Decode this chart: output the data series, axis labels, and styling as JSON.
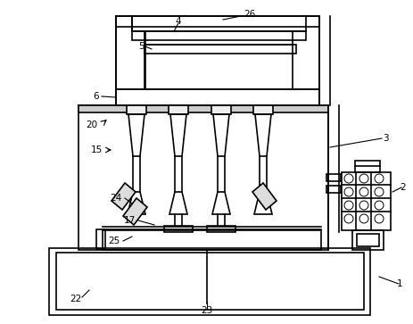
{
  "background_color": "#ffffff",
  "line_color": "#000000",
  "line_width": 1.2,
  "thin_lw": 0.8,
  "figsize": [
    4.63,
    3.63
  ],
  "dpi": 100
}
